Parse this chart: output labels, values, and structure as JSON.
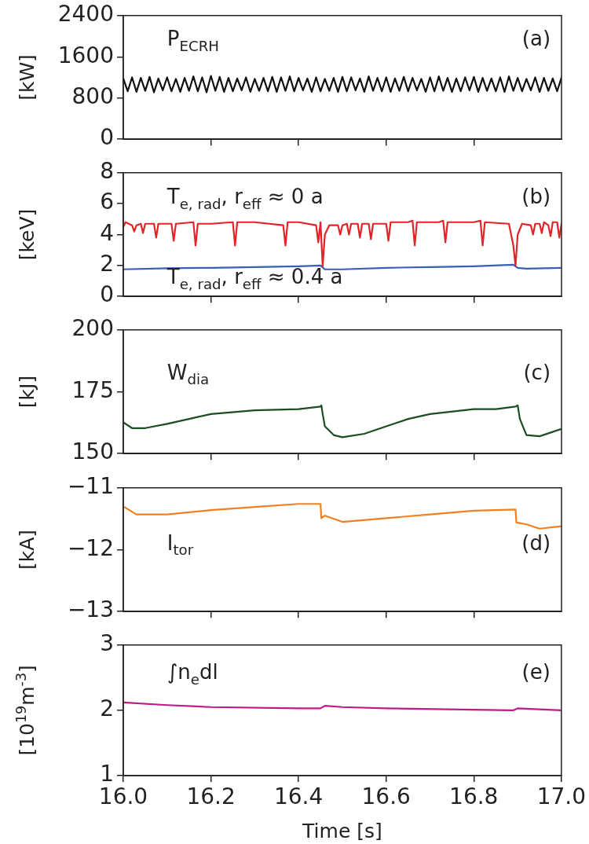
{
  "chart_data": [
    {
      "type": "line",
      "ylabel": "[kW]",
      "annotations": [
        "P$_{ECRH}$",
        "(a)"
      ],
      "xlim": [
        16,
        17
      ],
      "xticks": [
        {
          "value": 16.2,
          "label": null
        },
        {
          "value": 16.4,
          "label": null
        },
        {
          "value": 16.6,
          "label": null
        },
        {
          "value": 16.8,
          "label": null
        }
      ],
      "ylim": [
        0,
        2400
      ],
      "yticks": [
        0,
        800,
        1600,
        2400
      ],
      "tick_labels": "y",
      "legend": false,
      "grid": false,
      "marker": "none",
      "series": [
        {
          "color": "#111111",
          "x": [
            16,
            16.01,
            16.02,
            16.03,
            16.04,
            16.05,
            16.06,
            16.07,
            16.08,
            16.09,
            16.1,
            16.11,
            16.12,
            16.13,
            16.14,
            16.15,
            16.16,
            16.17,
            16.18,
            16.19,
            16.2,
            16.21,
            16.22,
            16.23,
            16.24,
            16.25,
            16.26,
            16.27,
            16.28,
            16.29,
            16.3,
            16.31,
            16.32,
            16.33,
            16.34,
            16.35,
            16.36,
            16.37,
            16.38,
            16.39,
            16.4,
            16.41,
            16.42,
            16.43,
            16.44,
            16.45,
            16.46,
            16.47,
            16.48,
            16.49,
            16.5,
            16.51,
            16.52,
            16.53,
            16.54,
            16.55,
            16.56,
            16.57,
            16.58,
            16.59,
            16.6,
            16.61,
            16.62,
            16.63,
            16.64,
            16.65,
            16.66,
            16.67,
            16.68,
            16.69,
            16.7,
            16.71,
            16.72,
            16.73,
            16.74,
            16.75,
            16.76,
            16.77,
            16.78,
            16.79,
            16.8,
            16.81,
            16.82,
            16.83,
            16.84,
            16.85,
            16.86,
            16.87,
            16.88,
            16.89,
            16.9,
            16.91,
            16.92,
            16.93,
            16.94,
            16.95,
            16.96,
            16.97,
            16.98,
            16.99,
            17
          ],
          "values": [
            1180,
            930,
            1200,
            920,
            1190,
            940,
            1210,
            910,
            1180,
            950,
            1200,
            930,
            1170,
            920,
            1190,
            940,
            1220,
            930,
            1200,
            910,
            1230,
            940,
            1210,
            920,
            1190,
            930,
            1180,
            950,
            1200,
            920,
            1170,
            940,
            1190,
            930,
            1210,
            920,
            1200,
            940,
            1220,
            930,
            1190,
            950,
            1180,
            920,
            1200,
            930,
            1170,
            940,
            1190,
            920,
            1210,
            930,
            1200,
            950,
            1180,
            920,
            1220,
            940,
            1190,
            930,
            1200,
            920,
            1180,
            940,
            1210,
            930,
            1190,
            950,
            1170,
            920,
            1200,
            930,
            1220,
            940,
            1190,
            920,
            1180,
            930,
            1200,
            950,
            1210,
            920,
            1190,
            940,
            1180,
            930,
            1200,
            920,
            1220,
            940,
            1190,
            930,
            1170,
            950,
            1200,
            920,
            1190,
            940,
            1180,
            930,
            1200
          ]
        }
      ]
    },
    {
      "type": "line",
      "ylabel": "[keV]",
      "annotations": [
        "T$_{e, rad}$, r$_{eff}$ ≈ 0 a",
        "(b)",
        "T$_{e, rad}$, r$_{eff}$ ≈ 0.4 a"
      ],
      "xlim": [
        16,
        17
      ],
      "xticks": [
        {
          "value": 16.2,
          "label": null
        },
        {
          "value": 16.4,
          "label": null
        },
        {
          "value": 16.6,
          "label": null
        },
        {
          "value": 16.8,
          "label": null
        }
      ],
      "ylim": [
        0,
        8
      ],
      "yticks": [
        0,
        2,
        4,
        6,
        8
      ],
      "tick_labels": "y",
      "legend": false,
      "grid": false,
      "marker": "none",
      "series": [
        {
          "color": "#e02428",
          "x": [
            16,
            16.005,
            16.02,
            16.025,
            16.03,
            16.04,
            16.045,
            16.05,
            16.07,
            16.075,
            16.08,
            16.11,
            16.115,
            16.12,
            16.16,
            16.165,
            16.17,
            16.2,
            16.25,
            16.255,
            16.26,
            16.3,
            16.365,
            16.37,
            16.375,
            16.4,
            16.44,
            16.445,
            16.45,
            16.455,
            16.46,
            16.47,
            16.49,
            16.495,
            16.5,
            16.51,
            16.515,
            16.52,
            16.535,
            16.54,
            16.545,
            16.56,
            16.565,
            16.57,
            16.6,
            16.605,
            16.61,
            16.65,
            16.66,
            16.665,
            16.67,
            16.72,
            16.73,
            16.735,
            16.74,
            16.8,
            16.815,
            16.82,
            16.825,
            16.88,
            16.89,
            16.895,
            16.9,
            16.91,
            16.93,
            16.935,
            16.94,
            16.95,
            16.955,
            16.96,
            16.97,
            16.975,
            16.98,
            16.99,
            16.995,
            17
          ],
          "values": [
            4.5,
            4.8,
            4.6,
            4.2,
            4.6,
            4.7,
            4.1,
            4.7,
            4.7,
            3.8,
            4.7,
            4.7,
            3.6,
            4.7,
            4.8,
            3.3,
            4.7,
            4.7,
            4.8,
            3.3,
            4.8,
            4.8,
            4.6,
            3.3,
            4.8,
            4.8,
            4.6,
            3.5,
            4.8,
            1.95,
            4.0,
            4.6,
            4.6,
            4.0,
            4.6,
            4.7,
            4.0,
            4.7,
            4.7,
            3.8,
            4.7,
            4.7,
            3.7,
            4.7,
            4.7,
            3.6,
            4.8,
            4.8,
            4.9,
            3.3,
            4.8,
            4.8,
            4.9,
            3.5,
            4.8,
            4.8,
            4.9,
            3.3,
            4.8,
            4.7,
            3.3,
            2.0,
            4.0,
            4.7,
            4.6,
            4.0,
            4.7,
            4.7,
            4.1,
            4.8,
            4.6,
            3.9,
            4.8,
            4.8,
            3.8,
            4.7
          ]
        },
        {
          "color": "#3a5fb8",
          "x": [
            16,
            16.1,
            16.2,
            16.3,
            16.4,
            16.45,
            16.46,
            16.5,
            16.6,
            16.7,
            16.8,
            16.89,
            16.9,
            16.92,
            17
          ],
          "values": [
            1.75,
            1.82,
            1.85,
            1.9,
            1.95,
            2.0,
            1.75,
            1.75,
            1.85,
            1.9,
            1.95,
            2.05,
            1.85,
            1.8,
            1.85
          ]
        }
      ]
    },
    {
      "type": "line",
      "ylabel": "[kJ]",
      "annotations": [
        "W$_{dia}$",
        "(c)"
      ],
      "xlim": [
        16,
        17
      ],
      "xticks": [
        {
          "value": 16.2,
          "label": null
        },
        {
          "value": 16.4,
          "label": null
        },
        {
          "value": 16.6,
          "label": null
        },
        {
          "value": 16.8,
          "label": null
        }
      ],
      "ylim": [
        150,
        200
      ],
      "yticks": [
        150,
        175,
        200
      ],
      "tick_labels": "y",
      "legend": false,
      "grid": false,
      "marker": "none",
      "series": [
        {
          "color": "#1b4d22",
          "x": [
            16,
            16.02,
            16.05,
            16.1,
            16.15,
            16.2,
            16.3,
            16.4,
            16.45,
            16.452,
            16.455,
            16.46,
            16.48,
            16.5,
            16.55,
            16.6,
            16.65,
            16.7,
            16.8,
            16.85,
            16.895,
            16.9,
            16.905,
            16.92,
            16.95,
            17
          ],
          "values": [
            162.6,
            160.3,
            160.3,
            162,
            164,
            166,
            167.5,
            168,
            169,
            169.5,
            166,
            161,
            157.5,
            156.6,
            158,
            161,
            164,
            166,
            168,
            168,
            169,
            169.5,
            164,
            157.5,
            157,
            160
          ]
        }
      ]
    },
    {
      "type": "line",
      "ylabel": "[kA]",
      "annotations": [
        "I$_{tor}$",
        "(d)"
      ],
      "xlim": [
        16,
        17
      ],
      "xticks": [
        {
          "value": 16.2,
          "label": null
        },
        {
          "value": 16.4,
          "label": null
        },
        {
          "value": 16.6,
          "label": null
        },
        {
          "value": 16.8,
          "label": null
        }
      ],
      "ylim": [
        -13,
        -11
      ],
      "yticks": [
        {
          "value": -13,
          "label": "−13"
        },
        {
          "value": -12,
          "label": "−12"
        },
        {
          "value": -11,
          "label": "−11"
        }
      ],
      "tick_labels": "y",
      "legend": false,
      "grid": false,
      "marker": "none",
      "series": [
        {
          "color": "#f28023",
          "x": [
            16,
            16.03,
            16.1,
            16.2,
            16.3,
            16.4,
            16.45,
            16.452,
            16.46,
            16.5,
            16.6,
            16.7,
            16.8,
            16.895,
            16.897,
            16.92,
            16.95,
            17
          ],
          "values": [
            -11.3,
            -11.43,
            -11.43,
            -11.36,
            -11.31,
            -11.26,
            -11.26,
            -11.49,
            -11.45,
            -11.55,
            -11.49,
            -11.43,
            -11.37,
            -11.35,
            -11.56,
            -11.59,
            -11.66,
            -11.62
          ]
        }
      ]
    },
    {
      "type": "line",
      "ylabel": "[10$^{19}$m$^{-3}$]",
      "xlabel": "Time [s]",
      "annotations": [
        "∫n$_{e}$dl",
        "(e)"
      ],
      "xlim": [
        16,
        17
      ],
      "xticks": [
        {
          "value": 16,
          "label": "16.0"
        },
        16.2,
        16.4,
        16.6,
        16.8,
        {
          "value": 17,
          "label": "17.0"
        }
      ],
      "ylim": [
        1,
        3
      ],
      "yticks": [
        1,
        2,
        3
      ],
      "legend": false,
      "grid": false,
      "marker": "none",
      "series": [
        {
          "color": "#c01a88",
          "x": [
            16,
            16.1,
            16.2,
            16.4,
            16.45,
            16.46,
            16.5,
            16.6,
            16.8,
            16.89,
            16.9,
            17
          ],
          "values": [
            2.12,
            2.08,
            2.05,
            2.03,
            2.03,
            2.07,
            2.05,
            2.03,
            2.01,
            2.0,
            2.03,
            2.0
          ]
        }
      ]
    }
  ]
}
